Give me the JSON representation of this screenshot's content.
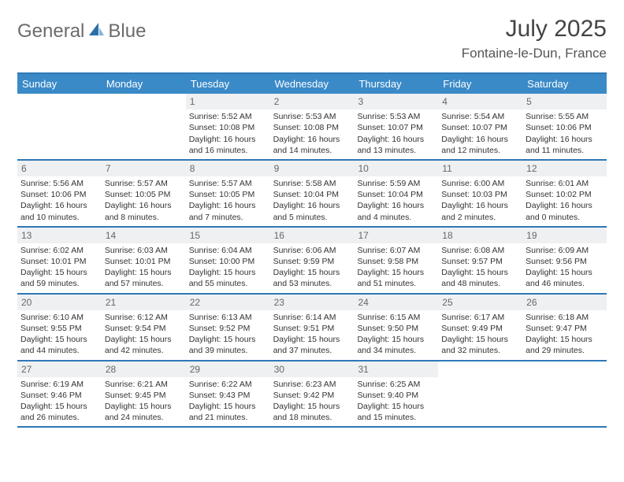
{
  "logo": {
    "text1": "General",
    "text2": "Blue"
  },
  "title": "July 2025",
  "location": "Fontaine-le-Dun, France",
  "colors": {
    "header_bg": "#3a8ac8",
    "border": "#2f78b8",
    "daynum_bg": "#eef0f2",
    "text": "#333333"
  },
  "day_names": [
    "Sunday",
    "Monday",
    "Tuesday",
    "Wednesday",
    "Thursday",
    "Friday",
    "Saturday"
  ],
  "weeks": [
    [
      null,
      null,
      {
        "n": "1",
        "sr": "5:52 AM",
        "ss": "10:08 PM",
        "dl": "16 hours and 16 minutes."
      },
      {
        "n": "2",
        "sr": "5:53 AM",
        "ss": "10:08 PM",
        "dl": "16 hours and 14 minutes."
      },
      {
        "n": "3",
        "sr": "5:53 AM",
        "ss": "10:07 PM",
        "dl": "16 hours and 13 minutes."
      },
      {
        "n": "4",
        "sr": "5:54 AM",
        "ss": "10:07 PM",
        "dl": "16 hours and 12 minutes."
      },
      {
        "n": "5",
        "sr": "5:55 AM",
        "ss": "10:06 PM",
        "dl": "16 hours and 11 minutes."
      }
    ],
    [
      {
        "n": "6",
        "sr": "5:56 AM",
        "ss": "10:06 PM",
        "dl": "16 hours and 10 minutes."
      },
      {
        "n": "7",
        "sr": "5:57 AM",
        "ss": "10:05 PM",
        "dl": "16 hours and 8 minutes."
      },
      {
        "n": "8",
        "sr": "5:57 AM",
        "ss": "10:05 PM",
        "dl": "16 hours and 7 minutes."
      },
      {
        "n": "9",
        "sr": "5:58 AM",
        "ss": "10:04 PM",
        "dl": "16 hours and 5 minutes."
      },
      {
        "n": "10",
        "sr": "5:59 AM",
        "ss": "10:04 PM",
        "dl": "16 hours and 4 minutes."
      },
      {
        "n": "11",
        "sr": "6:00 AM",
        "ss": "10:03 PM",
        "dl": "16 hours and 2 minutes."
      },
      {
        "n": "12",
        "sr": "6:01 AM",
        "ss": "10:02 PM",
        "dl": "16 hours and 0 minutes."
      }
    ],
    [
      {
        "n": "13",
        "sr": "6:02 AM",
        "ss": "10:01 PM",
        "dl": "15 hours and 59 minutes."
      },
      {
        "n": "14",
        "sr": "6:03 AM",
        "ss": "10:01 PM",
        "dl": "15 hours and 57 minutes."
      },
      {
        "n": "15",
        "sr": "6:04 AM",
        "ss": "10:00 PM",
        "dl": "15 hours and 55 minutes."
      },
      {
        "n": "16",
        "sr": "6:06 AM",
        "ss": "9:59 PM",
        "dl": "15 hours and 53 minutes."
      },
      {
        "n": "17",
        "sr": "6:07 AM",
        "ss": "9:58 PM",
        "dl": "15 hours and 51 minutes."
      },
      {
        "n": "18",
        "sr": "6:08 AM",
        "ss": "9:57 PM",
        "dl": "15 hours and 48 minutes."
      },
      {
        "n": "19",
        "sr": "6:09 AM",
        "ss": "9:56 PM",
        "dl": "15 hours and 46 minutes."
      }
    ],
    [
      {
        "n": "20",
        "sr": "6:10 AM",
        "ss": "9:55 PM",
        "dl": "15 hours and 44 minutes."
      },
      {
        "n": "21",
        "sr": "6:12 AM",
        "ss": "9:54 PM",
        "dl": "15 hours and 42 minutes."
      },
      {
        "n": "22",
        "sr": "6:13 AM",
        "ss": "9:52 PM",
        "dl": "15 hours and 39 minutes."
      },
      {
        "n": "23",
        "sr": "6:14 AM",
        "ss": "9:51 PM",
        "dl": "15 hours and 37 minutes."
      },
      {
        "n": "24",
        "sr": "6:15 AM",
        "ss": "9:50 PM",
        "dl": "15 hours and 34 minutes."
      },
      {
        "n": "25",
        "sr": "6:17 AM",
        "ss": "9:49 PM",
        "dl": "15 hours and 32 minutes."
      },
      {
        "n": "26",
        "sr": "6:18 AM",
        "ss": "9:47 PM",
        "dl": "15 hours and 29 minutes."
      }
    ],
    [
      {
        "n": "27",
        "sr": "6:19 AM",
        "ss": "9:46 PM",
        "dl": "15 hours and 26 minutes."
      },
      {
        "n": "28",
        "sr": "6:21 AM",
        "ss": "9:45 PM",
        "dl": "15 hours and 24 minutes."
      },
      {
        "n": "29",
        "sr": "6:22 AM",
        "ss": "9:43 PM",
        "dl": "15 hours and 21 minutes."
      },
      {
        "n": "30",
        "sr": "6:23 AM",
        "ss": "9:42 PM",
        "dl": "15 hours and 18 minutes."
      },
      {
        "n": "31",
        "sr": "6:25 AM",
        "ss": "9:40 PM",
        "dl": "15 hours and 15 minutes."
      },
      null,
      null
    ]
  ],
  "labels": {
    "sunrise": "Sunrise: ",
    "sunset": "Sunset: ",
    "daylight": "Daylight: "
  }
}
